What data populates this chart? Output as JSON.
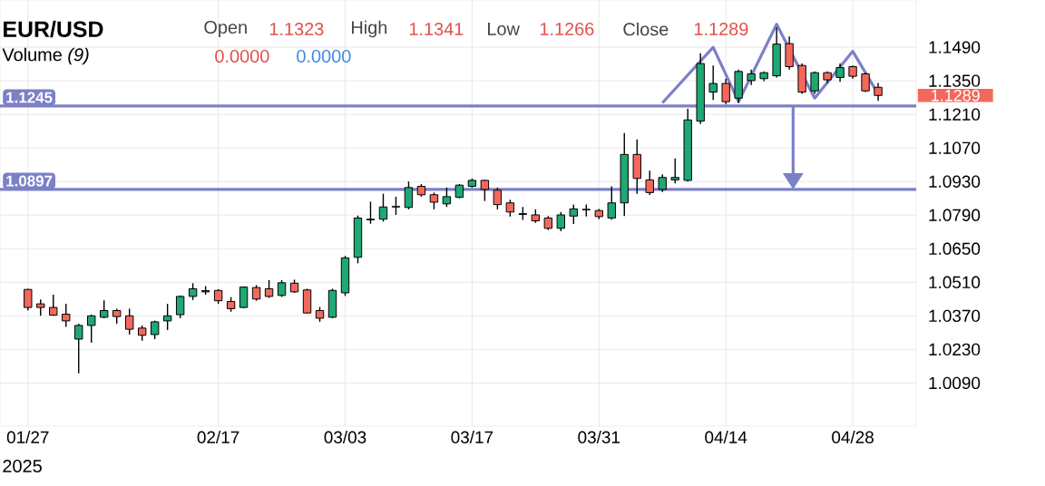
{
  "chart_data": {
    "type": "candlestick",
    "title": "EUR/USD",
    "categories": [
      "01/27",
      null,
      null,
      null,
      null,
      null,
      null,
      null,
      null,
      null,
      null,
      null,
      null,
      null,
      null,
      "02/17",
      null,
      null,
      null,
      null,
      null,
      null,
      null,
      null,
      null,
      "03/03",
      null,
      null,
      null,
      null,
      null,
      null,
      null,
      null,
      null,
      "03/17",
      null,
      null,
      null,
      null,
      null,
      null,
      null,
      null,
      null,
      "03/31",
      null,
      null,
      null,
      null,
      null,
      null,
      null,
      null,
      null,
      "04/14",
      null,
      null,
      null,
      null,
      null,
      null,
      null,
      null,
      null,
      "04/28",
      null,
      null
    ],
    "ohlc": [
      [
        1.048,
        1.0483,
        1.0393,
        1.0405
      ],
      [
        1.042,
        1.0438,
        1.037,
        1.0405
      ],
      [
        1.0405,
        1.0458,
        1.037,
        1.0373
      ],
      [
        1.0377,
        1.042,
        1.0324,
        1.0349
      ],
      [
        1.0273,
        1.0337,
        1.013,
        1.033
      ],
      [
        1.033,
        1.0375,
        1.0258,
        1.037
      ],
      [
        1.0364,
        1.0435,
        1.036,
        1.0392
      ],
      [
        1.0392,
        1.04,
        1.0337,
        1.0367
      ],
      [
        1.037,
        1.04,
        1.0292,
        1.0314
      ],
      [
        1.0319,
        1.033,
        1.0266,
        1.0289
      ],
      [
        1.0292,
        1.035,
        1.0273,
        1.0345
      ],
      [
        1.0349,
        1.042,
        1.0311,
        1.037
      ],
      [
        1.0375,
        1.0455,
        1.036,
        1.0451
      ],
      [
        1.0451,
        1.0506,
        1.0436,
        1.0483
      ],
      [
        1.047,
        1.0494,
        1.0458,
        1.0475
      ],
      [
        1.0476,
        1.0481,
        1.042,
        1.0433
      ],
      [
        1.043,
        1.0448,
        1.0387,
        1.04
      ],
      [
        1.0405,
        1.0493,
        1.0402,
        1.049
      ],
      [
        1.0488,
        1.0498,
        1.0433,
        1.044
      ],
      [
        1.0483,
        1.0519,
        1.0445,
        1.0451
      ],
      [
        1.0455,
        1.0519,
        1.0449,
        1.0508
      ],
      [
        1.0506,
        1.0521,
        1.0466,
        1.047
      ],
      [
        1.0478,
        1.0483,
        1.038,
        1.0382
      ],
      [
        1.0392,
        1.0407,
        1.0345,
        1.036
      ],
      [
        1.0364,
        1.0483,
        1.036,
        1.0476
      ],
      [
        1.0466,
        1.062,
        1.0453,
        1.0612
      ],
      [
        1.0614,
        1.0788,
        1.0589,
        1.0778
      ],
      [
        1.077,
        1.0846,
        1.0754,
        1.0773
      ],
      [
        1.0773,
        1.0879,
        1.0763,
        1.0824
      ],
      [
        1.0824,
        1.0867,
        1.0791,
        1.0826
      ],
      [
        1.0822,
        1.093,
        1.0814,
        1.0905
      ],
      [
        1.091,
        1.092,
        1.0867,
        1.0875
      ],
      [
        1.0875,
        1.0884,
        1.0814,
        1.0844
      ],
      [
        1.0837,
        1.0905,
        1.0824,
        1.0867
      ],
      [
        1.0864,
        1.092,
        1.086,
        1.0915
      ],
      [
        1.091,
        1.0943,
        1.0905,
        1.0935
      ],
      [
        1.0935,
        1.0937,
        1.0849,
        1.0897
      ],
      [
        1.0894,
        1.0905,
        1.0814,
        1.0834
      ],
      [
        1.0841,
        1.0854,
        1.0784,
        1.0803
      ],
      [
        1.0796,
        1.0824,
        1.077,
        1.0793
      ],
      [
        1.0791,
        1.0814,
        1.0758,
        1.0766
      ],
      [
        1.0778,
        1.0786,
        1.0728,
        1.0735
      ],
      [
        1.0735,
        1.0803,
        1.0723,
        1.0791
      ],
      [
        1.0786,
        1.0834,
        1.0753,
        1.0816
      ],
      [
        1.0812,
        1.0834,
        1.0784,
        1.0814
      ],
      [
        1.0809,
        1.0816,
        1.0773,
        1.0784
      ],
      [
        1.0778,
        1.091,
        1.0771,
        1.0841
      ],
      [
        1.0841,
        1.1132,
        1.0786,
        1.1043
      ],
      [
        1.1043,
        1.1106,
        1.0879,
        1.0943
      ],
      [
        1.0937,
        1.0975,
        1.0874,
        1.0884
      ],
      [
        1.0897,
        1.096,
        1.0886,
        1.0947
      ],
      [
        1.0937,
        1.1026,
        1.0922,
        1.0947
      ],
      [
        1.0935,
        1.1233,
        1.093,
        1.1187
      ],
      [
        1.1182,
        1.1465,
        1.117,
        1.1422
      ],
      [
        1.1303,
        1.1414,
        1.127,
        1.1339
      ],
      [
        1.1339,
        1.1359,
        1.1253,
        1.1263
      ],
      [
        1.1278,
        1.1397,
        1.1258,
        1.1389
      ],
      [
        1.1351,
        1.1397,
        1.1333,
        1.1379
      ],
      [
        1.1359,
        1.1389,
        1.1349,
        1.1384
      ],
      [
        1.1371,
        1.1573,
        1.1364,
        1.1503
      ],
      [
        1.1505,
        1.1535,
        1.1397,
        1.1409
      ],
      [
        1.1414,
        1.1422,
        1.1296,
        1.1303
      ],
      [
        1.1308,
        1.1389,
        1.1296,
        1.1384
      ],
      [
        1.1384,
        1.1389,
        1.1341,
        1.1354
      ],
      [
        1.1364,
        1.1422,
        1.1346,
        1.1405
      ],
      [
        1.1409,
        1.1414,
        1.1359,
        1.1369
      ],
      [
        1.1379,
        1.1384,
        1.1303,
        1.1308
      ],
      [
        1.1323,
        1.1341,
        1.1266,
        1.1289
      ]
    ],
    "colors": [
      "#f4675c",
      "#f4675c",
      "#f4675c",
      "#f4675c",
      "#1fa774",
      "#1fa774",
      "#1fa774",
      "#f4675c",
      "#f4675c",
      "#f4675c",
      "#1fa774",
      "#1fa774",
      "#1fa774",
      "#1fa774",
      "#1fa774",
      "#f4675c",
      "#f4675c",
      "#1fa774",
      "#f4675c",
      "#f4675c",
      "#1fa774",
      "#f4675c",
      "#f4675c",
      "#f4675c",
      "#1fa774",
      "#1fa774",
      "#1fa774",
      "#1fa774",
      "#1fa774",
      "#1fa774",
      "#1fa774",
      "#f4675c",
      "#f4675c",
      "#1fa774",
      "#1fa774",
      "#1fa774",
      "#f4675c",
      "#f4675c",
      "#f4675c",
      "#f4675c",
      "#f4675c",
      "#f4675c",
      "#1fa774",
      "#1fa774",
      "#1fa774",
      "#f4675c",
      "#1fa774",
      "#1fa774",
      "#f4675c",
      "#f4675c",
      "#1fa774",
      "#1fa774",
      "#1fa774",
      "#1fa774",
      "#1fa774",
      "#f4675c",
      "#1fa774",
      "#1fa774",
      "#1fa774",
      "#1fa774",
      "#f4675c",
      "#f4675c",
      "#1fa774",
      "#f4675c",
      "#1fa774",
      "#f4675c",
      "#f4675c",
      "#f4675c"
    ],
    "series": [
      {
        "type": "line",
        "color": "#7c80c6",
        "values": [
          null,
          null,
          null,
          null,
          null,
          null,
          null,
          null,
          null,
          null,
          null,
          null,
          null,
          null,
          null,
          null,
          null,
          null,
          null,
          null,
          null,
          null,
          null,
          null,
          null,
          null,
          null,
          null,
          null,
          null,
          null,
          null,
          null,
          null,
          null,
          null,
          null,
          null,
          null,
          null,
          null,
          null,
          null,
          null,
          null,
          null,
          null,
          null,
          null,
          null,
          1.1258,
          null,
          null,
          null,
          1.149,
          null,
          1.1263,
          null,
          null,
          1.1586,
          null,
          null,
          1.1278,
          null,
          null,
          1.1473,
          null,
          1.1295
        ]
      }
    ],
    "ylim": [
      0.991,
      1.1687
    ],
    "yticks": [
      {
        "value": 1.009,
        "label": "1.0090"
      },
      {
        "value": 1.023,
        "label": "1.0230"
      },
      {
        "value": 1.037,
        "label": "1.0370"
      },
      {
        "value": 1.051,
        "label": "1.0510"
      },
      {
        "value": 1.065,
        "label": "1.0650"
      },
      {
        "value": 1.079,
        "label": "1.0790"
      },
      {
        "value": 1.093,
        "label": "1.0930"
      },
      {
        "value": 1.107,
        "label": "1.1070"
      },
      {
        "value": 1.121,
        "label": "1.1210"
      },
      {
        "value": 1.135,
        "label": "1.1350"
      },
      {
        "value": 1.149,
        "label": "1.1490"
      }
    ],
    "grid": true,
    "ref_lines": [
      {
        "axis": "y",
        "value": 1.1245,
        "label": "1.1245",
        "color": "#7c80c6"
      },
      {
        "axis": "y",
        "value": 1.0897,
        "label": "1.0897",
        "color": "#7c80c6"
      }
    ],
    "annotations": [
      "Open",
      "1.1323",
      "High",
      "1.1341",
      "Low",
      "1.1266",
      "Close",
      "1.1289",
      "Volume *(9)*",
      "0.0000",
      "0.0000",
      "2025",
      "1.1289"
    ]
  }
}
